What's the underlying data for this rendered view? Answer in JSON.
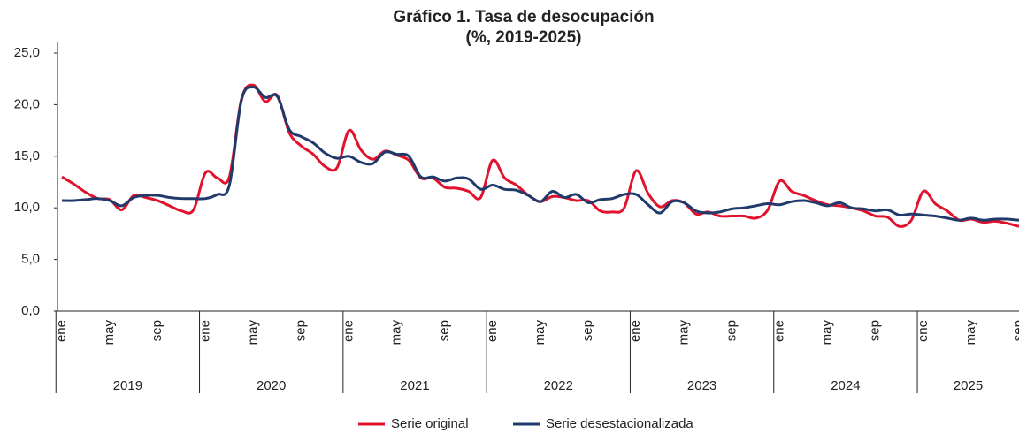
{
  "chart_data": {
    "type": "line",
    "title": "Gráfico 1. Tasa de desocupación",
    "subtitle": "(%, 2019-2025)",
    "categories": [
      "ene",
      null,
      null,
      null,
      "may",
      null,
      null,
      null,
      "sep",
      null,
      null,
      null,
      "ene",
      null,
      null,
      null,
      "may",
      null,
      null,
      null,
      "sep",
      null,
      null,
      null,
      "ene",
      null,
      null,
      null,
      "may",
      null,
      null,
      null,
      "sep",
      null,
      null,
      null,
      "ene",
      null,
      null,
      null,
      "may",
      null,
      null,
      null,
      "sep",
      null,
      null,
      null,
      "ene",
      null,
      null,
      null,
      "may",
      null,
      null,
      null,
      "sep",
      null,
      null,
      null,
      "ene",
      null,
      null,
      null,
      "may",
      null,
      null,
      null,
      "sep",
      null,
      null,
      null,
      "ene",
      null,
      null,
      null,
      "may",
      null,
      null,
      null,
      "sep"
    ],
    "years": [
      "2019",
      "2020",
      "2021",
      "2022",
      "2023",
      "2024",
      "2025"
    ],
    "series": [
      {
        "name": "Serie original",
        "color": "#e0122d",
        "values": [
          13.0,
          12.3,
          11.5,
          10.9,
          10.8,
          9.8,
          11.2,
          11.0,
          10.7,
          10.2,
          9.7,
          9.8,
          13.4,
          12.9,
          13.0,
          20.5,
          21.9,
          20.3,
          20.9,
          17.3,
          16.0,
          15.2,
          14.0,
          13.9,
          17.5,
          15.6,
          14.7,
          15.5,
          15.1,
          14.6,
          12.9,
          12.9,
          12.0,
          11.9,
          11.6,
          11.0,
          14.6,
          12.9,
          12.2,
          11.2,
          10.6,
          11.1,
          11.0,
          10.7,
          10.7,
          9.7,
          9.6,
          10.0,
          13.6,
          11.4,
          10.1,
          10.7,
          10.5,
          9.4,
          9.6,
          9.2,
          9.2,
          9.2,
          9.0,
          9.8,
          12.6,
          11.6,
          11.2,
          10.7,
          10.3,
          10.2,
          10.0,
          9.7,
          9.2,
          9.1,
          8.2,
          8.8,
          11.6,
          10.4,
          9.7,
          8.8,
          8.9,
          8.6,
          8.7,
          8.5,
          8.2
        ]
      },
      {
        "name": "Serie desestacionalizada",
        "color": "#1f3a6b",
        "values": [
          10.7,
          10.7,
          10.8,
          10.9,
          10.7,
          10.2,
          11.0,
          11.2,
          11.2,
          11.0,
          10.9,
          10.9,
          10.9,
          11.3,
          12.2,
          20.4,
          21.7,
          20.7,
          20.8,
          17.6,
          16.9,
          16.3,
          15.3,
          14.8,
          15.0,
          14.4,
          14.3,
          15.4,
          15.2,
          15.0,
          13.0,
          13.0,
          12.6,
          12.9,
          12.8,
          11.8,
          12.2,
          11.8,
          11.7,
          11.2,
          10.6,
          11.6,
          11.0,
          11.3,
          10.5,
          10.8,
          10.9,
          11.3,
          11.3,
          10.3,
          9.5,
          10.6,
          10.5,
          9.7,
          9.5,
          9.6,
          9.9,
          10.0,
          10.2,
          10.4,
          10.3,
          10.6,
          10.7,
          10.5,
          10.2,
          10.5,
          10.0,
          9.9,
          9.7,
          9.8,
          9.3,
          9.4,
          9.3,
          9.2,
          9.0,
          8.8,
          9.0,
          8.8,
          8.9,
          8.9,
          8.8
        ]
      }
    ],
    "ylim": [
      0,
      25
    ],
    "yticks": [
      {
        "value": 0,
        "label": "0,0"
      },
      {
        "value": 5,
        "label": "5,0"
      },
      {
        "value": 10,
        "label": "10,0"
      },
      {
        "value": 15,
        "label": "15,0"
      },
      {
        "value": 20,
        "label": "20,0"
      },
      {
        "value": 25,
        "label": "25,0"
      }
    ],
    "grid": false,
    "legend": "bottom"
  }
}
